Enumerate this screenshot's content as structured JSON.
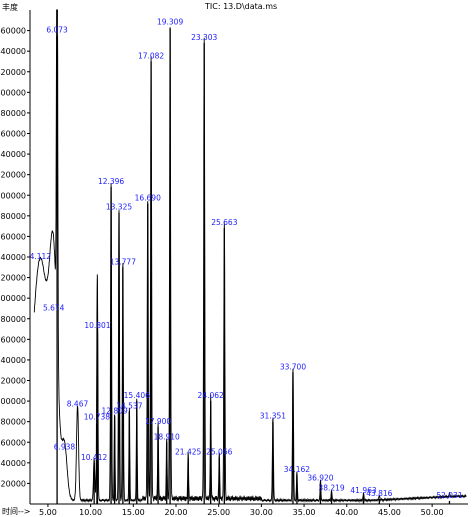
{
  "chart_data": {
    "type": "line",
    "title": "TIC: 13.D\\data.ms",
    "ylabel": "丰度",
    "xlabel": "时间-->",
    "xlim": [
      2.9,
      54.2
    ],
    "ylim": [
      0,
      480000
    ],
    "y_ticks": [
      20000,
      40000,
      60000,
      80000,
      100000,
      120000,
      140000,
      160000,
      180000,
      200000,
      220000,
      240000,
      260000,
      280000,
      300000,
      320000,
      340000,
      360000,
      380000,
      400000,
      420000,
      440000,
      460000
    ],
    "x_ticks": [
      "5.00",
      "10.00",
      "15.00",
      "20.00",
      "25.00",
      "30.00",
      "35.00",
      "40.00",
      "45.00",
      "50.00"
    ],
    "x_tick_values": [
      5,
      10,
      15,
      20,
      25,
      30,
      35,
      40,
      45,
      50
    ],
    "series": [
      {
        "color": "#000000",
        "peaks": [
          {
            "rt": 4.112,
            "label": "4.112",
            "y": 235000,
            "w": 1.0
          },
          {
            "rt": 5.674,
            "label": "5.674",
            "y": 185000,
            "w": 0.45
          },
          {
            "rt": 6.073,
            "label": "6.073",
            "y": 455000,
            "w": 0.07
          },
          {
            "rt": 6.938,
            "label": "6.938",
            "y": 50000,
            "w": 0.3
          },
          {
            "rt": 8.467,
            "label": "8.467",
            "y": 92000,
            "w": 0.12
          },
          {
            "rt": 10.412,
            "label": "10.412",
            "y": 40000,
            "w": 0.08
          },
          {
            "rt": 10.738,
            "label": "10.738",
            "y": 79000,
            "w": 0.06
          },
          {
            "rt": 10.801,
            "label": "10.801",
            "y": 168000,
            "w": 0.06
          },
          {
            "rt": 12.396,
            "label": "12.396",
            "y": 308000,
            "w": 0.06
          },
          {
            "rt": 12.809,
            "label": "12.809",
            "y": 85000,
            "w": 0.05
          },
          {
            "rt": 13.325,
            "label": "13.325",
            "y": 283000,
            "w": 0.06
          },
          {
            "rt": 13.777,
            "label": "13.777",
            "y": 230000,
            "w": 0.06
          },
          {
            "rt": 14.537,
            "label": "14.537",
            "y": 90000,
            "w": 0.05
          },
          {
            "rt": 15.406,
            "label": "15.406",
            "y": 100000,
            "w": 0.05
          },
          {
            "rt": 16.69,
            "label": "16.690",
            "y": 292000,
            "w": 0.06
          },
          {
            "rt": 17.082,
            "label": "17.082",
            "y": 430000,
            "w": 0.06
          },
          {
            "rt": 17.9,
            "label": "17.900",
            "y": 75000,
            "w": 0.05
          },
          {
            "rt": 18.91,
            "label": "18.910",
            "y": 60000,
            "w": 0.05
          },
          {
            "rt": 19.309,
            "label": "19.309",
            "y": 463000,
            "w": 0.06
          },
          {
            "rt": 21.425,
            "label": "21.425",
            "y": 45000,
            "w": 0.05
          },
          {
            "rt": 23.303,
            "label": "23.303",
            "y": 448000,
            "w": 0.06
          },
          {
            "rt": 24.062,
            "label": "24.062",
            "y": 100000,
            "w": 0.05
          },
          {
            "rt": 25.066,
            "label": "25.066",
            "y": 45000,
            "w": 0.05
          },
          {
            "rt": 25.663,
            "label": "25.663",
            "y": 268000,
            "w": 0.06
          },
          {
            "rt": 31.351,
            "label": "31.351",
            "y": 80000,
            "w": 0.06
          },
          {
            "rt": 33.7,
            "label": "33.700",
            "y": 128000,
            "w": 0.06
          },
          {
            "rt": 34.162,
            "label": "34.162",
            "y": 28000,
            "w": 0.05
          },
          {
            "rt": 36.92,
            "label": "36.920",
            "y": 20000,
            "w": 0.05
          },
          {
            "rt": 38.219,
            "label": "38.219",
            "y": 10000,
            "w": 0.05
          },
          {
            "rt": 41.963,
            "label": "41.963",
            "y": 8000,
            "w": 0.05
          },
          {
            "rt": 43.816,
            "label": "43.816",
            "y": 5000,
            "w": 0.05
          },
          {
            "rt": 52.031,
            "label": "52.031",
            "y": 3000,
            "w": 0.05
          }
        ]
      }
    ]
  }
}
